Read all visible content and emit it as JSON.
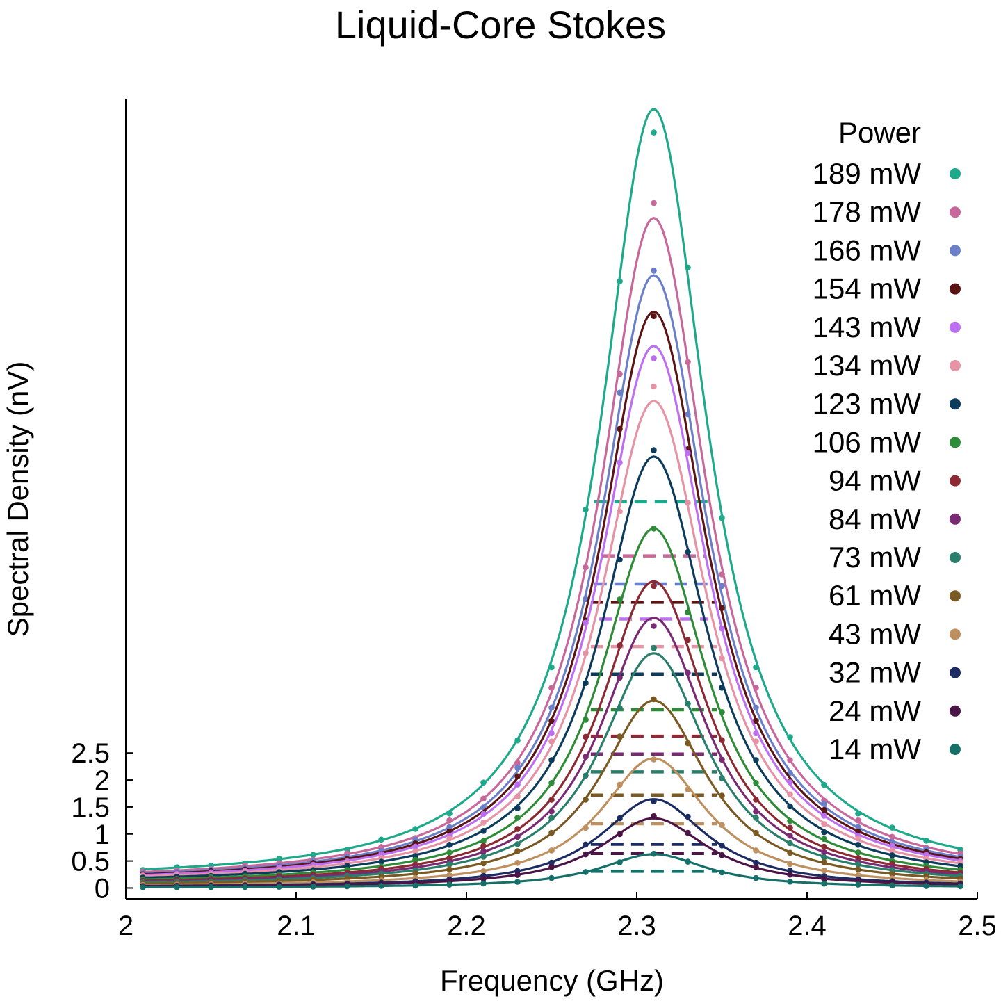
{
  "chart_data": {
    "type": "line",
    "title": "Liquid-Core Stokes",
    "xlabel": "Frequency (GHz)",
    "ylabel": "Spectral Density (nV)",
    "xlim": [
      2.0,
      2.5
    ],
    "ylim": [
      -0.2,
      14.6
    ],
    "x_ticks": [
      "2",
      "2.1",
      "2.2",
      "2.3",
      "2.4",
      "2.5"
    ],
    "y_ticks": [
      "0",
      "0.5",
      "1",
      "1.5",
      "2",
      "2.5"
    ],
    "grid": false,
    "legend": {
      "title": "Power",
      "position": "top-right"
    },
    "center_frequency": 2.31,
    "series": [
      {
        "name": "189 mW",
        "color": "#1fa98b",
        "peak": 14.3,
        "half_max": 7.15,
        "fwhm": 0.07
      },
      {
        "name": "178 mW",
        "color": "#c7679a",
        "peak": 12.3,
        "half_max": 6.15,
        "fwhm": 0.06
      },
      {
        "name": "166 mW",
        "color": "#6b7fc9",
        "peak": 11.25,
        "half_max": 5.63,
        "fwhm": 0.07
      },
      {
        "name": "154 mW",
        "color": "#5a1414",
        "peak": 10.58,
        "half_max": 5.29,
        "fwhm": 0.074
      },
      {
        "name": "143 mW",
        "color": "#bd6ff2",
        "peak": 9.95,
        "half_max": 4.98,
        "fwhm": 0.064
      },
      {
        "name": "134 mW",
        "color": "#e693a5",
        "peak": 8.94,
        "half_max": 4.47,
        "fwhm": 0.074
      },
      {
        "name": "123 mW",
        "color": "#0d3b5c",
        "peak": 7.92,
        "half_max": 3.96,
        "fwhm": 0.074
      },
      {
        "name": "106 mW",
        "color": "#2e8b38",
        "peak": 6.6,
        "half_max": 3.3,
        "fwhm": 0.074
      },
      {
        "name": "94 mW",
        "color": "#8c2a33",
        "peak": 5.63,
        "half_max": 2.81,
        "fwhm": 0.074
      },
      {
        "name": "84 mW",
        "color": "#7a2a72",
        "peak": 4.96,
        "half_max": 2.48,
        "fwhm": 0.074
      },
      {
        "name": "73 mW",
        "color": "#2a7f6c",
        "peak": 4.31,
        "half_max": 2.15,
        "fwhm": 0.074
      },
      {
        "name": "61 mW",
        "color": "#7a5a22",
        "peak": 3.44,
        "half_max": 1.72,
        "fwhm": 0.074
      },
      {
        "name": "43 mW",
        "color": "#be9060",
        "peak": 2.38,
        "half_max": 1.19,
        "fwhm": 0.074
      },
      {
        "name": "32 mW",
        "color": "#1c2c62",
        "peak": 1.63,
        "half_max": 0.81,
        "fwhm": 0.074
      },
      {
        "name": "24 mW",
        "color": "#4a1546",
        "peak": 1.28,
        "half_max": 0.64,
        "fwhm": 0.074
      },
      {
        "name": "14 mW",
        "color": "#16706a",
        "peak": 0.62,
        "half_max": 0.31,
        "fwhm": 0.074
      }
    ]
  }
}
